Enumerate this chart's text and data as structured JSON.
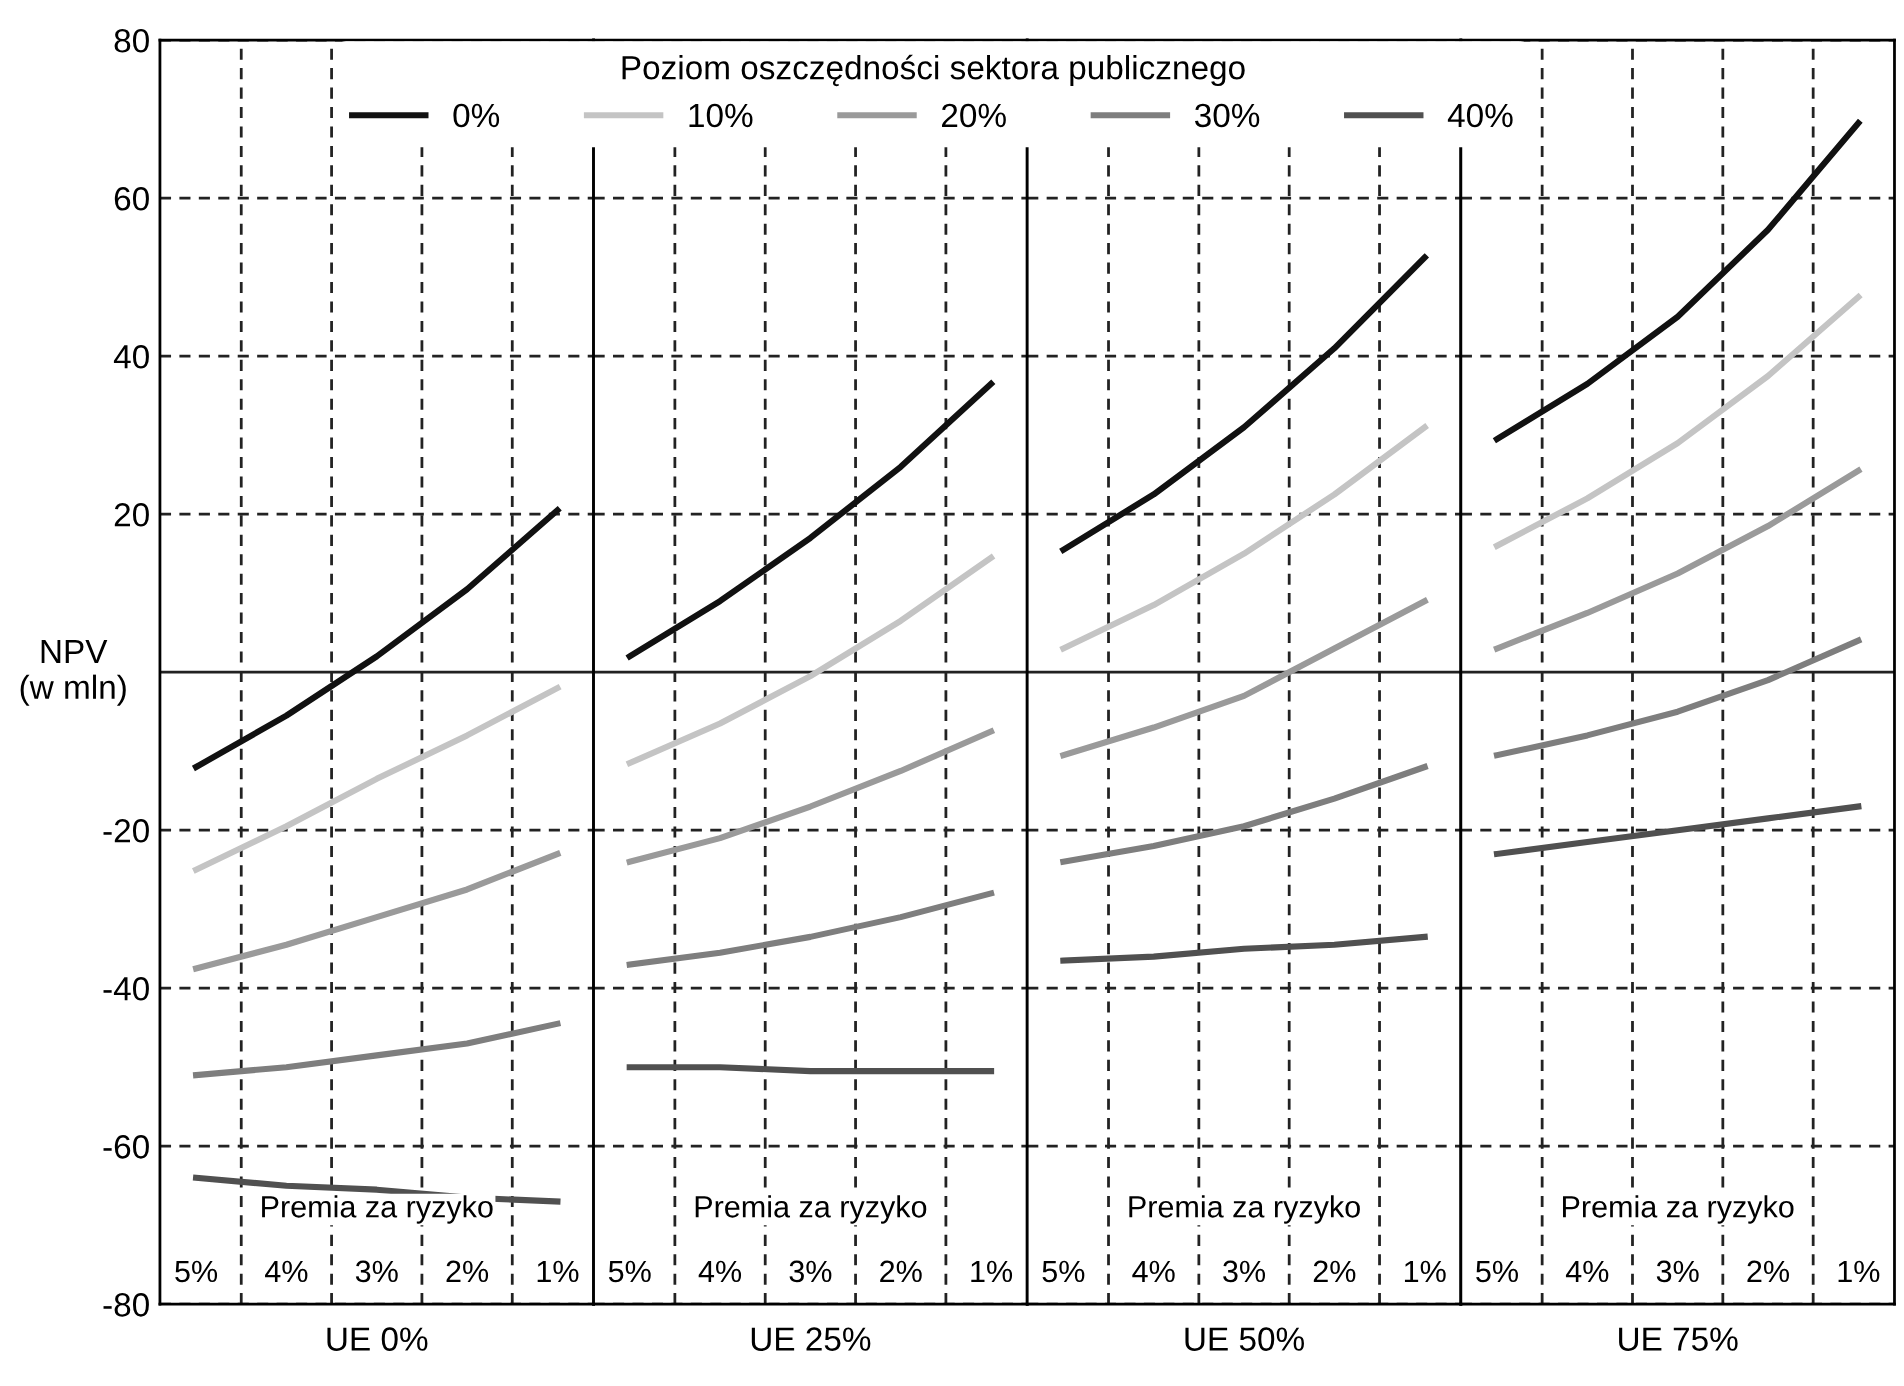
{
  "chart_data": [
    {
      "type": "line",
      "xlabel": "UE 0%",
      "ylabel": "NPV\n(w mln)",
      "legend_title": "Poziom oszczędności sektora publicznego",
      "legend": "top",
      "grid": true,
      "tick_labels": "xy",
      "annotations": [
        "Premia za ryzyko"
      ],
      "categories": [
        "5%",
        "4%",
        "3%",
        "2%",
        "1%"
      ],
      "ylim": [
        -80,
        80
      ],
      "yticks": [
        -80,
        -60,
        -40,
        -20,
        20,
        40,
        60,
        80
      ],
      "ref_lines": [
        {
          "axis": "y",
          "value": 0,
          "color": "#222222",
          "line_style": "solid"
        }
      ],
      "series": [
        {
          "name": "0%",
          "color": "#111111",
          "values": [
            -12,
            -5.5,
            2,
            10.5,
            20.5
          ]
        },
        {
          "name": "10%",
          "color": "#c4c4c4",
          "values": [
            -25,
            -19.5,
            -13.5,
            -8,
            -2
          ]
        },
        {
          "name": "20%",
          "color": "#9a9a9a",
          "values": [
            -37.5,
            -34.5,
            -31,
            -27.5,
            -23
          ]
        },
        {
          "name": "30%",
          "color": "#7e7e7e",
          "values": [
            -51,
            -50,
            -48.5,
            -47,
            -44.5
          ]
        },
        {
          "name": "40%",
          "color": "#505050",
          "values": [
            -64,
            -65,
            -65.5,
            -66.5,
            -67
          ]
        }
      ]
    },
    {
      "type": "line",
      "xlabel": "UE 25%",
      "grid": true,
      "tick_labels": "x",
      "annotations": [
        "Premia za ryzyko"
      ],
      "categories": [
        "5%",
        "4%",
        "3%",
        "2%",
        "1%"
      ],
      "ylim": [
        -80,
        80
      ],
      "yticks": [
        -80,
        -60,
        -40,
        -20,
        20,
        40,
        60,
        80
      ],
      "ref_lines": [
        {
          "axis": "y",
          "value": 0,
          "color": "#222222",
          "line_style": "solid"
        }
      ],
      "series": [
        {
          "color": "#111111",
          "values": [
            2,
            9,
            17,
            26,
            36.5
          ]
        },
        {
          "color": "#c4c4c4",
          "values": [
            -11.5,
            -6.5,
            -0.5,
            6.5,
            14.5
          ]
        },
        {
          "color": "#9a9a9a",
          "values": [
            -24,
            -21,
            -17,
            -12.5,
            -7.5
          ]
        },
        {
          "color": "#7e7e7e",
          "values": [
            -37,
            -35.5,
            -33.5,
            -31,
            -28
          ]
        },
        {
          "color": "#505050",
          "values": [
            -50,
            -50,
            -50.5,
            -50.5,
            -50.5
          ]
        }
      ]
    },
    {
      "type": "line",
      "xlabel": "UE 50%",
      "grid": true,
      "tick_labels": "x",
      "annotations": [
        "Premia za ryzyko"
      ],
      "categories": [
        "5%",
        "4%",
        "3%",
        "2%",
        "1%"
      ],
      "ylim": [
        -80,
        80
      ],
      "yticks": [
        -80,
        -60,
        -40,
        -20,
        20,
        40,
        60,
        80
      ],
      "ref_lines": [
        {
          "axis": "y",
          "value": 0,
          "color": "#222222",
          "line_style": "solid"
        }
      ],
      "series": [
        {
          "color": "#111111",
          "values": [
            15.5,
            22.5,
            31,
            41,
            52.5
          ]
        },
        {
          "color": "#c4c4c4",
          "values": [
            3,
            8.5,
            15,
            22.5,
            31
          ]
        },
        {
          "color": "#9a9a9a",
          "values": [
            -10.5,
            -7,
            -3,
            3,
            9
          ]
        },
        {
          "color": "#7e7e7e",
          "values": [
            -24,
            -22,
            -19.5,
            -16,
            -12
          ]
        },
        {
          "color": "#505050",
          "values": [
            -36.5,
            -36,
            -35,
            -34.5,
            -33.5
          ]
        }
      ]
    },
    {
      "type": "line",
      "xlabel": "UE 75%",
      "grid": true,
      "tick_labels": "x",
      "annotations": [
        "Premia za ryzyko"
      ],
      "categories": [
        "5%",
        "4%",
        "3%",
        "2%",
        "1%"
      ],
      "ylim": [
        -80,
        80
      ],
      "yticks": [
        -80,
        -60,
        -40,
        -20,
        20,
        40,
        60,
        80
      ],
      "ref_lines": [
        {
          "axis": "y",
          "value": 0,
          "color": "#222222",
          "line_style": "solid"
        }
      ],
      "series": [
        {
          "color": "#111111",
          "values": [
            29.5,
            36.5,
            45,
            56,
            69.5
          ]
        },
        {
          "color": "#c4c4c4",
          "values": [
            16,
            22,
            29,
            37.5,
            47.5
          ]
        },
        {
          "color": "#9a9a9a",
          "values": [
            3,
            7.5,
            12.5,
            18.5,
            25.5
          ]
        },
        {
          "color": "#7e7e7e",
          "values": [
            -10.5,
            -8,
            -5,
            -1,
            4
          ]
        },
        {
          "color": "#505050",
          "values": [
            -23,
            -21.5,
            -20,
            -18.5,
            -17
          ]
        }
      ]
    }
  ]
}
